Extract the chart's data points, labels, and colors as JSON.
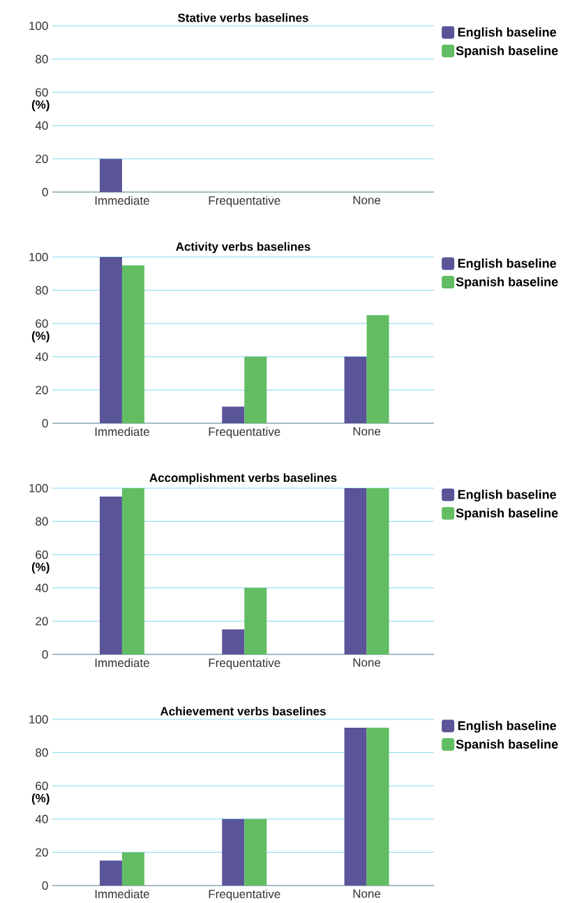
{
  "chart_data": [
    {
      "type": "bar",
      "title": "Stative verbs baselines",
      "ylabel": "(%)",
      "categories": [
        "Immediate",
        "Frequentative",
        "None"
      ],
      "series": [
        {
          "name": "English baseline",
          "color": "#5a5499",
          "values": [
            20,
            0,
            0
          ]
        },
        {
          "name": "Spanish baseline",
          "color": "#62bd63",
          "values": [
            0,
            0,
            0
          ]
        }
      ],
      "ylim": [
        0,
        100
      ],
      "yticks": [
        0,
        20,
        40,
        60,
        80,
        100
      ],
      "grid": "y",
      "legend": "top right"
    },
    {
      "type": "bar",
      "title": "Activity verbs baselines",
      "ylabel": "(%)",
      "categories": [
        "Immediate",
        "Frequentative",
        "None"
      ],
      "series": [
        {
          "name": "English baseline",
          "color": "#5a5499",
          "values": [
            100,
            10,
            40
          ]
        },
        {
          "name": "Spanish baseline",
          "color": "#62bd63",
          "values": [
            95,
            40,
            65
          ]
        }
      ],
      "ylim": [
        0,
        100
      ],
      "yticks": [
        0,
        20,
        40,
        60,
        80,
        100
      ],
      "grid": "y",
      "legend": "top right"
    },
    {
      "type": "bar",
      "title": "Accomplishment verbs baselines",
      "ylabel": "(%)",
      "categories": [
        "Immediate",
        "Frequentative",
        "None"
      ],
      "series": [
        {
          "name": "English baseline",
          "color": "#5a5499",
          "values": [
            95,
            15,
            100
          ]
        },
        {
          "name": "Spanish baseline",
          "color": "#62bd63",
          "values": [
            100,
            40,
            100
          ]
        }
      ],
      "ylim": [
        0,
        100
      ],
      "yticks": [
        0,
        20,
        40,
        60,
        80,
        100
      ],
      "grid": "y",
      "legend": "top right"
    },
    {
      "type": "bar",
      "title": "Achievement verbs baselines",
      "ylabel": "(%)",
      "categories": [
        "Immediate",
        "Frequentative",
        "None"
      ],
      "series": [
        {
          "name": "English baseline",
          "color": "#5a5499",
          "values": [
            15,
            40,
            95
          ]
        },
        {
          "name": "Spanish baseline",
          "color": "#62bd63",
          "values": [
            20,
            40,
            95
          ]
        }
      ],
      "ylim": [
        0,
        100
      ],
      "yticks": [
        0,
        20,
        40,
        60,
        80,
        100
      ],
      "grid": "y",
      "legend": "top right"
    }
  ]
}
